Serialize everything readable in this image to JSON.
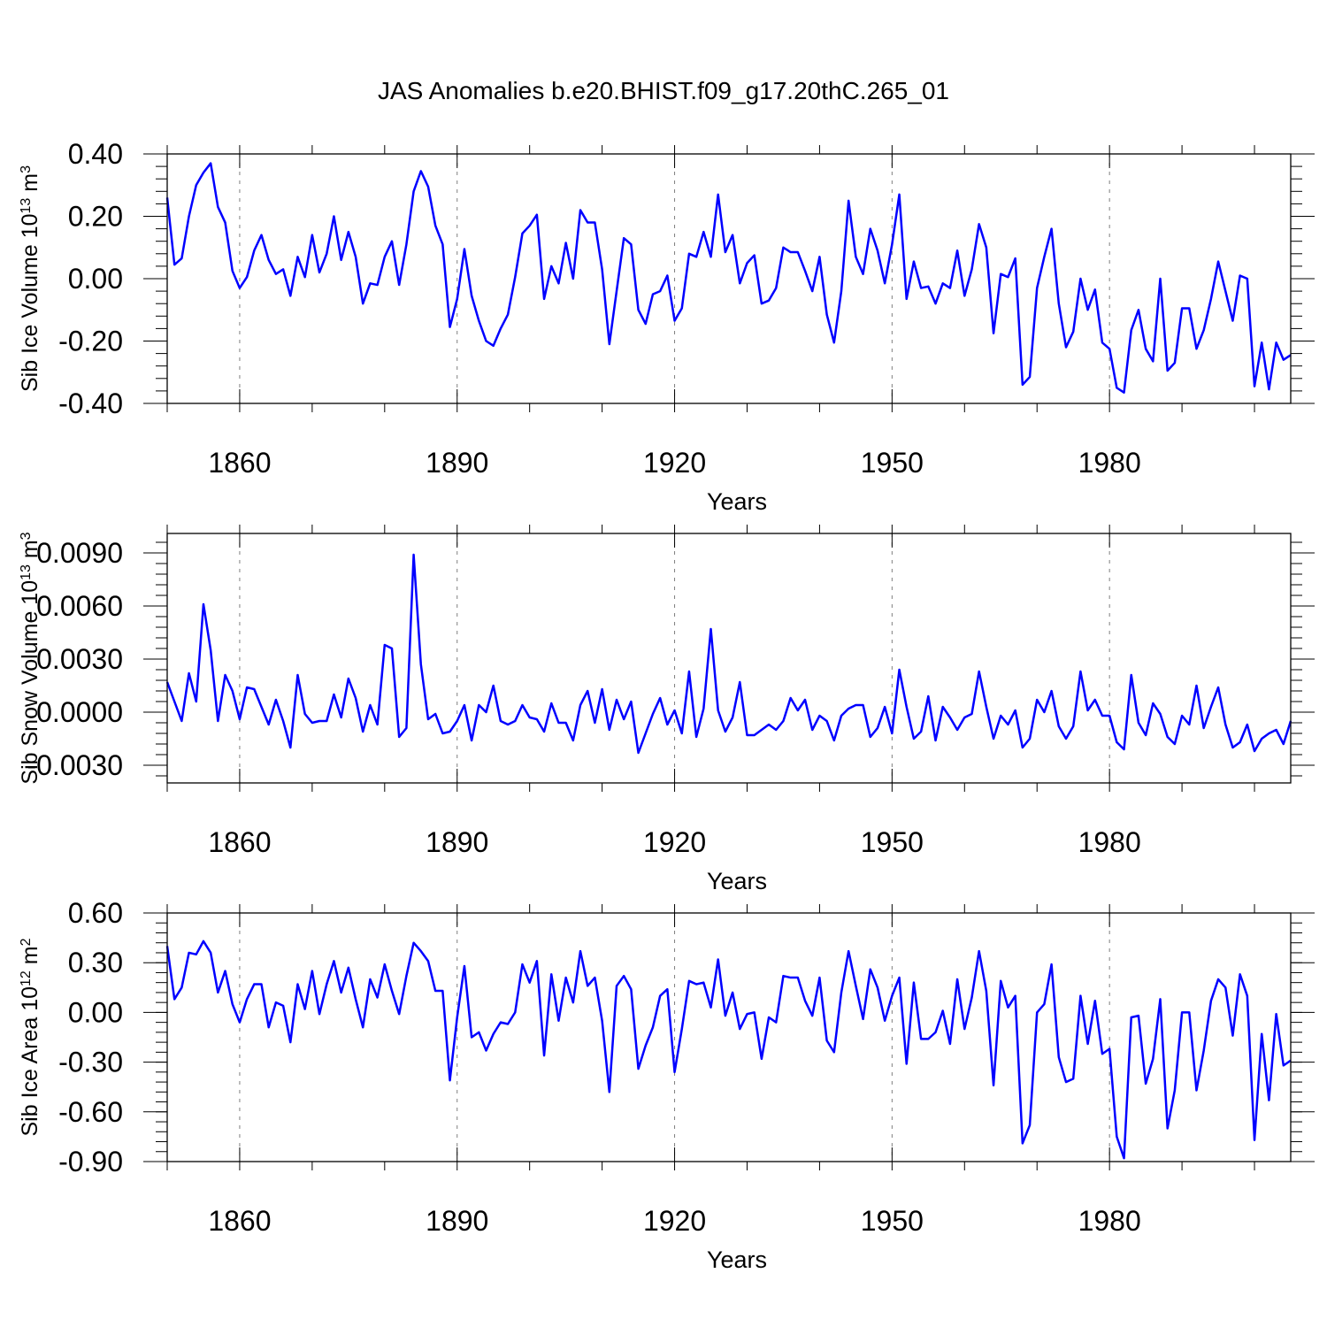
{
  "figure": {
    "title": "JAS Anomalies b.e20.BHIST.f09_g17.20thC.265_01",
    "line_color": "#0000ff",
    "grid_color": "#7f7f7f"
  },
  "chart_data": [
    {
      "type": "line",
      "title": "",
      "xlabel": "Years",
      "ylabel": {
        "prefix": "Sib Ice Volume 10",
        "exp": "13",
        "unit": " m",
        "unit_exp": "3"
      },
      "xlim": [
        1850,
        2005
      ],
      "ylim": [
        -0.4,
        0.4
      ],
      "x_ticks": [
        1860,
        1890,
        1920,
        1950,
        1980
      ],
      "x_tick_labels": [
        "1860",
        "1890",
        "1920",
        "1950",
        "1980"
      ],
      "y_ticks": [
        -0.4,
        -0.2,
        0.0,
        0.2,
        0.4
      ],
      "y_tick_labels": [
        "-0.40",
        "-0.20",
        "0.00",
        "0.20",
        "0.40"
      ],
      "grid": "vertical dashed at labeled years",
      "series": [
        {
          "x_start": 1850,
          "x_step": 1,
          "values": [
            0.26,
            0.045,
            0.065,
            0.2,
            0.3,
            0.34,
            0.37,
            0.23,
            0.18,
            0.025,
            -0.03,
            0.005,
            0.09,
            0.14,
            0.06,
            0.015,
            0.03,
            -0.055,
            0.07,
            0.005,
            0.14,
            0.02,
            0.08,
            0.2,
            0.06,
            0.15,
            0.07,
            -0.08,
            -0.015,
            -0.02,
            0.07,
            0.12,
            -0.02,
            0.11,
            0.28,
            0.345,
            0.295,
            0.17,
            0.11,
            -0.155,
            -0.065,
            0.095,
            -0.055,
            -0.135,
            -0.2,
            -0.215,
            -0.16,
            -0.115,
            0.005,
            0.145,
            0.17,
            0.205,
            -0.065,
            0.04,
            -0.015,
            0.115,
            0.0,
            0.22,
            0.18,
            0.18,
            0.03,
            -0.21,
            -0.04,
            0.13,
            0.11,
            -0.1,
            -0.145,
            -0.05,
            -0.04,
            0.01,
            -0.135,
            -0.095,
            0.08,
            0.07,
            0.15,
            0.07,
            0.27,
            0.085,
            0.14,
            -0.015,
            0.05,
            0.075,
            -0.08,
            -0.07,
            -0.03,
            0.1,
            0.085,
            0.085,
            0.025,
            -0.04,
            0.07,
            -0.115,
            -0.205,
            -0.04,
            0.25,
            0.07,
            0.015,
            0.16,
            0.09,
            -0.015,
            0.11,
            0.27,
            -0.065,
            0.055,
            -0.03,
            -0.025,
            -0.08,
            -0.015,
            -0.03,
            0.09,
            -0.055,
            0.03,
            0.175,
            0.1,
            -0.175,
            0.015,
            0.005,
            0.065,
            -0.34,
            -0.315,
            -0.03,
            0.07,
            0.16,
            -0.08,
            -0.22,
            -0.17,
            0.0,
            -0.1,
            -0.035,
            -0.205,
            -0.225,
            -0.35,
            -0.365,
            -0.165,
            -0.1,
            -0.225,
            -0.265,
            0.0,
            -0.295,
            -0.27,
            -0.095,
            -0.095,
            -0.225,
            -0.165,
            -0.065,
            0.055,
            -0.04,
            -0.135,
            0.01,
            0.0,
            -0.345,
            -0.205,
            -0.355,
            -0.205,
            -0.26,
            -0.245
          ]
        }
      ]
    },
    {
      "type": "line",
      "title": "",
      "xlabel": "Years",
      "ylabel": {
        "prefix": "Sib Snow Volume 10",
        "exp": "13",
        "unit": " m",
        "unit_exp": "3"
      },
      "xlim": [
        1850,
        2005
      ],
      "ylim": [
        -0.004,
        0.0101
      ],
      "x_ticks": [
        1860,
        1890,
        1920,
        1950,
        1980
      ],
      "x_tick_labels": [
        "1860",
        "1890",
        "1920",
        "1950",
        "1980"
      ],
      "y_ticks": [
        -0.003,
        0.0,
        0.003,
        0.006,
        0.009
      ],
      "y_tick_labels": [
        "-0.0030",
        "0.0000",
        "0.0030",
        "0.0060",
        "0.0090"
      ],
      "grid": "vertical dashed at labeled years",
      "series": [
        {
          "x_start": 1850,
          "x_step": 1,
          "values": [
            0.0017,
            0.0006,
            -0.0005,
            0.0022,
            0.0006,
            0.0061,
            0.0035,
            -0.0005,
            0.0021,
            0.0012,
            -0.0004,
            0.0014,
            0.0013,
            0.0003,
            -0.0007,
            0.0007,
            -0.0005,
            -0.002,
            0.0021,
            -0.0001,
            -0.0006,
            -0.0005,
            -0.0005,
            0.001,
            -0.0003,
            0.0019,
            0.0008,
            -0.0011,
            0.0004,
            -0.0007,
            0.0038,
            0.0036,
            -0.0014,
            -0.0009,
            0.0089,
            0.0027,
            -0.0004,
            -0.0001,
            -0.0012,
            -0.0011,
            -0.0005,
            0.0004,
            -0.0016,
            0.0004,
            0.0,
            0.0015,
            -0.0005,
            -0.0007,
            -0.0005,
            0.0004,
            -0.0003,
            -0.0004,
            -0.0011,
            0.0005,
            -0.0006,
            -0.0006,
            -0.0016,
            0.0004,
            0.0012,
            -0.0006,
            0.0013,
            -0.001,
            0.0007,
            -0.0004,
            0.0006,
            -0.0023,
            -0.0012,
            -0.0001,
            0.0008,
            -0.0007,
            0.0001,
            -0.0012,
            0.0023,
            -0.0014,
            0.0002,
            0.0047,
            0.0001,
            -0.0011,
            -0.0003,
            0.0017,
            -0.0013,
            -0.0013,
            -0.001,
            -0.0007,
            -0.001,
            -0.0005,
            0.0008,
            0.0001,
            0.0007,
            -0.001,
            -0.0002,
            -0.0005,
            -0.0016,
            -0.0002,
            0.0002,
            0.0004,
            0.0004,
            -0.0014,
            -0.0009,
            0.0003,
            -0.0012,
            0.0024,
            0.0003,
            -0.0015,
            -0.0011,
            0.0009,
            -0.0016,
            0.0003,
            -0.0003,
            -0.001,
            -0.0003,
            -0.0001,
            0.0023,
            0.0003,
            -0.0015,
            -0.0002,
            -0.0007,
            0.0001,
            -0.002,
            -0.0015,
            0.0007,
            0.0,
            0.0012,
            -0.0008,
            -0.0015,
            -0.0008,
            0.0023,
            0.0001,
            0.0007,
            -0.0002,
            -0.0002,
            -0.0017,
            -0.0021,
            0.0021,
            -0.0006,
            -0.0013,
            0.0005,
            -0.0001,
            -0.0014,
            -0.0018,
            -0.0002,
            -0.0007,
            0.0015,
            -0.0009,
            0.0003,
            0.0014,
            -0.0007,
            -0.002,
            -0.0017,
            -0.0007,
            -0.0022,
            -0.0015,
            -0.0012,
            -0.001,
            -0.0018,
            -0.0005
          ]
        }
      ]
    },
    {
      "type": "line",
      "title": "",
      "xlabel": "Years",
      "ylabel": {
        "prefix": "Sib Ice Area 10",
        "exp": "12",
        "unit": " m",
        "unit_exp": "2"
      },
      "xlim": [
        1850,
        2005
      ],
      "ylim": [
        -0.9,
        0.6
      ],
      "x_ticks": [
        1860,
        1890,
        1920,
        1950,
        1980
      ],
      "x_tick_labels": [
        "1860",
        "1890",
        "1920",
        "1950",
        "1980"
      ],
      "y_ticks": [
        -0.9,
        -0.6,
        -0.3,
        0.0,
        0.3,
        0.6
      ],
      "y_tick_labels": [
        "-0.90",
        "-0.60",
        "-0.30",
        "0.00",
        "0.30",
        "0.60"
      ],
      "grid": "vertical dashed at labeled years",
      "series": [
        {
          "x_start": 1850,
          "x_step": 1,
          "values": [
            0.4,
            0.08,
            0.15,
            0.36,
            0.35,
            0.43,
            0.36,
            0.12,
            0.25,
            0.05,
            -0.06,
            0.08,
            0.17,
            0.17,
            -0.09,
            0.06,
            0.04,
            -0.18,
            0.17,
            0.02,
            0.25,
            -0.01,
            0.17,
            0.31,
            0.12,
            0.27,
            0.08,
            -0.09,
            0.2,
            0.09,
            0.29,
            0.13,
            -0.01,
            0.22,
            0.42,
            0.37,
            0.31,
            0.13,
            0.13,
            -0.41,
            -0.03,
            0.28,
            -0.15,
            -0.12,
            -0.23,
            -0.13,
            -0.06,
            -0.07,
            0.0,
            0.29,
            0.18,
            0.31,
            -0.26,
            0.23,
            -0.05,
            0.21,
            0.06,
            0.37,
            0.16,
            0.21,
            -0.05,
            -0.48,
            0.16,
            0.22,
            0.14,
            -0.34,
            -0.2,
            -0.09,
            0.1,
            0.14,
            -0.36,
            -0.1,
            0.19,
            0.17,
            0.18,
            0.03,
            0.32,
            -0.02,
            0.12,
            -0.1,
            -0.01,
            0.0,
            -0.28,
            -0.03,
            -0.06,
            0.22,
            0.21,
            0.21,
            0.07,
            -0.02,
            0.21,
            -0.17,
            -0.24,
            0.12,
            0.37,
            0.16,
            -0.04,
            0.26,
            0.15,
            -0.05,
            0.1,
            0.21,
            -0.31,
            0.18,
            -0.16,
            -0.16,
            -0.12,
            0.01,
            -0.19,
            0.2,
            -0.1,
            0.09,
            0.37,
            0.13,
            -0.44,
            0.19,
            0.03,
            0.1,
            -0.79,
            -0.68,
            0.0,
            0.05,
            0.29,
            -0.27,
            -0.42,
            -0.4,
            0.1,
            -0.19,
            0.07,
            -0.25,
            -0.22,
            -0.75,
            -0.88,
            -0.03,
            -0.02,
            -0.43,
            -0.28,
            0.08,
            -0.7,
            -0.47,
            0.0,
            0.0,
            -0.47,
            -0.23,
            0.07,
            0.2,
            0.15,
            -0.14,
            0.23,
            0.1,
            -0.77,
            -0.13,
            -0.53,
            -0.01,
            -0.32,
            -0.29
          ]
        }
      ]
    }
  ]
}
